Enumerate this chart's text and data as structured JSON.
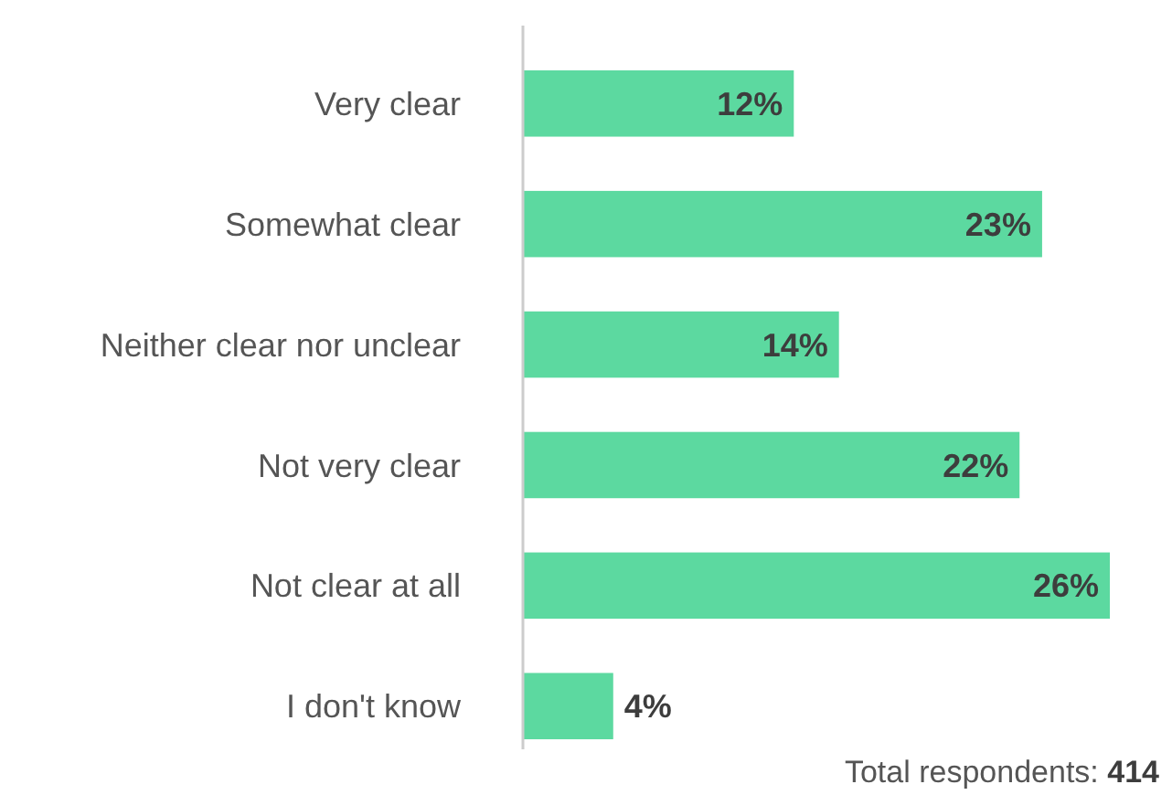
{
  "chart_data": {
    "type": "bar",
    "orientation": "horizontal",
    "categories": [
      "Very clear",
      "Somewhat clear",
      "Neither clear nor unclear",
      "Not very clear",
      "Not clear at all",
      "I don't know"
    ],
    "values": [
      12,
      23,
      14,
      22,
      26,
      4
    ],
    "value_labels": [
      "12%",
      "23%",
      "14%",
      "22%",
      "26%",
      "4%"
    ],
    "color": "#5cd9a0",
    "annotations": [
      "Total respondents: 414"
    ]
  }
}
